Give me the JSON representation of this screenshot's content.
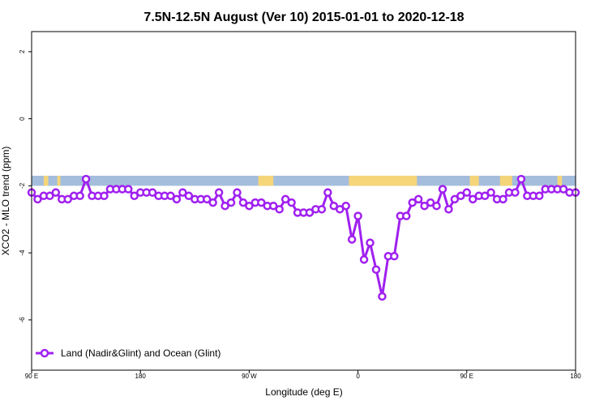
{
  "chart_data": {
    "type": "line",
    "title": "7.5N-12.5N August (Ver 10)   2015-01-01 to 2020-12-18",
    "xlabel": "Longitude (deg E)",
    "ylabel": "XCO2 - MLO trend (ppm)",
    "xlim": [
      90,
      450
    ],
    "ylim": [
      -7.5,
      2.6
    ],
    "x_ticks": [
      {
        "value": 90,
        "label": "90 E"
      },
      {
        "value": 162,
        "label": "180"
      },
      {
        "value": 234,
        "label": "90 W"
      },
      {
        "value": 306,
        "label": "0"
      },
      {
        "value": 378,
        "label": "90 E"
      },
      {
        "value": 450,
        "label": "180"
      }
    ],
    "y_ticks": [
      {
        "value": 2,
        "label": "2"
      },
      {
        "value": 0,
        "label": "0"
      },
      {
        "value": -2,
        "label": "-2"
      },
      {
        "value": -4,
        "label": "-4"
      },
      {
        "value": -6,
        "label": "-6"
      }
    ],
    "grid": false,
    "legend_position": "bottom-left",
    "series": [
      {
        "name": "Land (Nadir&Glint) and Ocean (Glint)",
        "color": "#a020f0",
        "x": [
          90,
          94,
          98,
          102,
          106,
          110,
          114,
          118,
          122,
          126,
          130,
          134,
          138,
          142,
          146,
          150,
          154,
          158,
          162,
          166,
          170,
          174,
          178,
          182,
          186,
          190,
          194,
          198,
          202,
          206,
          210,
          214,
          218,
          222,
          226,
          230,
          234,
          238,
          242,
          246,
          250,
          254,
          258,
          262,
          266,
          270,
          274,
          278,
          282,
          286,
          290,
          294,
          298,
          302,
          306,
          310,
          314,
          318,
          322,
          326,
          330,
          334,
          338,
          342,
          346,
          350,
          354,
          358,
          362,
          366,
          370,
          374,
          378,
          382,
          386,
          390,
          394,
          398,
          402,
          406,
          410,
          414,
          418,
          422,
          426,
          430,
          434,
          438,
          442,
          446,
          450
        ],
        "values": [
          -2.2,
          -2.4,
          -2.3,
          -2.3,
          -2.2,
          -2.4,
          -2.4,
          -2.3,
          -2.3,
          -1.8,
          -2.3,
          -2.3,
          -2.3,
          -2.1,
          -2.1,
          -2.1,
          -2.1,
          -2.3,
          -2.2,
          -2.2,
          -2.2,
          -2.3,
          -2.3,
          -2.3,
          -2.4,
          -2.2,
          -2.3,
          -2.4,
          -2.4,
          -2.4,
          -2.5,
          -2.2,
          -2.6,
          -2.5,
          -2.2,
          -2.5,
          -2.6,
          -2.5,
          -2.5,
          -2.6,
          -2.6,
          -2.7,
          -2.4,
          -2.5,
          -2.8,
          -2.8,
          -2.8,
          -2.7,
          -2.7,
          -2.2,
          -2.6,
          -2.7,
          -2.6,
          -3.6,
          -2.9,
          -4.2,
          -3.7,
          -4.5,
          -5.3,
          -4.1,
          -4.1,
          -2.9,
          -2.9,
          -2.5,
          -2.4,
          -2.6,
          -2.5,
          -2.6,
          -2.1,
          -2.7,
          -2.4,
          -2.3,
          -2.2,
          -2.4,
          -2.3,
          -2.3,
          -2.2,
          -2.4,
          -2.4,
          -2.2,
          -2.2,
          -1.8,
          -2.3,
          -2.3,
          -2.3,
          -2.1,
          -2.1,
          -2.1,
          -2.1,
          -2.2,
          -2.2
        ]
      }
    ],
    "land_band": {
      "ocean_color": "#a4bddc",
      "land_color": "#f5d57a",
      "y_range": [
        -2.0,
        -1.7
      ],
      "land_spans": [
        [
          98,
          101
        ],
        [
          107,
          109
        ],
        [
          240,
          250
        ],
        [
          300,
          345
        ],
        [
          380,
          386
        ],
        [
          400,
          408
        ],
        [
          438,
          441
        ]
      ]
    }
  }
}
